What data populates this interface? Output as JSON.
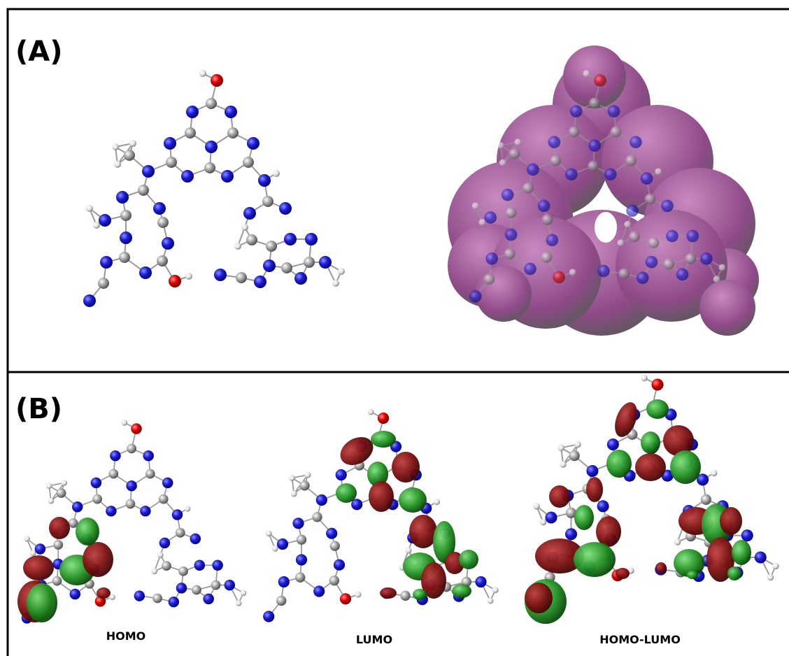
{
  "panel_a": {
    "label": "(A)"
  },
  "panel_b": {
    "label": "(B)",
    "captions": [
      "HOMO",
      "LUMO",
      "HOMO-LUMO"
    ]
  }
}
